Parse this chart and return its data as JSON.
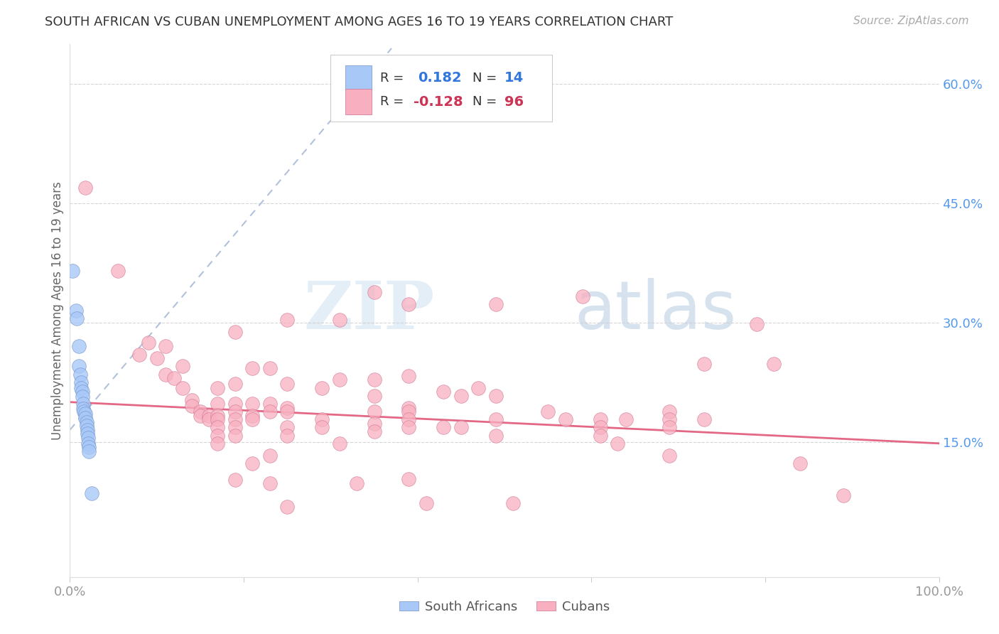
{
  "title": "SOUTH AFRICAN VS CUBAN UNEMPLOYMENT AMONG AGES 16 TO 19 YEARS CORRELATION CHART",
  "source": "Source: ZipAtlas.com",
  "ylabel": "Unemployment Among Ages 16 to 19 years",
  "xlim": [
    0,
    1.0
  ],
  "ylim": [
    -0.02,
    0.65
  ],
  "x_ticks": [
    0.0,
    0.2,
    0.4,
    0.6,
    0.8,
    1.0
  ],
  "x_tick_labels": [
    "0.0%",
    "",
    "",
    "",
    "",
    "100.0%"
  ],
  "y_tick_labels_right": [
    "15.0%",
    "30.0%",
    "45.0%",
    "60.0%"
  ],
  "y_tick_vals_right": [
    0.15,
    0.3,
    0.45,
    0.6
  ],
  "sa_color": "#a8c8f8",
  "sa_edge_color": "#7090c8",
  "cuban_color": "#f8b0c0",
  "cuban_edge_color": "#d07090",
  "sa_line_color": "#9ab8e8",
  "cuban_line_color": "#e05878",
  "background_color": "#ffffff",
  "watermark_zip": "ZIP",
  "watermark_atlas": "atlas",
  "south_african_points": [
    [
      0.003,
      0.365
    ],
    [
      0.007,
      0.315
    ],
    [
      0.008,
      0.305
    ],
    [
      0.01,
      0.27
    ],
    [
      0.01,
      0.245
    ],
    [
      0.012,
      0.235
    ],
    [
      0.013,
      0.225
    ],
    [
      0.013,
      0.218
    ],
    [
      0.014,
      0.213
    ],
    [
      0.014,
      0.207
    ],
    [
      0.015,
      0.198
    ],
    [
      0.015,
      0.192
    ],
    [
      0.016,
      0.188
    ],
    [
      0.018,
      0.185
    ],
    [
      0.018,
      0.18
    ],
    [
      0.019,
      0.175
    ],
    [
      0.019,
      0.17
    ],
    [
      0.02,
      0.165
    ],
    [
      0.02,
      0.16
    ],
    [
      0.021,
      0.155
    ],
    [
      0.021,
      0.148
    ],
    [
      0.022,
      0.143
    ],
    [
      0.022,
      0.138
    ],
    [
      0.025,
      0.085
    ]
  ],
  "cuban_points": [
    [
      0.018,
      0.47
    ],
    [
      0.055,
      0.365
    ],
    [
      0.08,
      0.26
    ],
    [
      0.09,
      0.275
    ],
    [
      0.1,
      0.255
    ],
    [
      0.11,
      0.27
    ],
    [
      0.11,
      0.235
    ],
    [
      0.12,
      0.23
    ],
    [
      0.13,
      0.245
    ],
    [
      0.13,
      0.218
    ],
    [
      0.14,
      0.202
    ],
    [
      0.14,
      0.195
    ],
    [
      0.15,
      0.188
    ],
    [
      0.15,
      0.183
    ],
    [
      0.16,
      0.183
    ],
    [
      0.16,
      0.178
    ],
    [
      0.17,
      0.218
    ],
    [
      0.17,
      0.198
    ],
    [
      0.17,
      0.183
    ],
    [
      0.17,
      0.178
    ],
    [
      0.17,
      0.168
    ],
    [
      0.17,
      0.158
    ],
    [
      0.17,
      0.148
    ],
    [
      0.19,
      0.288
    ],
    [
      0.19,
      0.223
    ],
    [
      0.19,
      0.198
    ],
    [
      0.19,
      0.188
    ],
    [
      0.19,
      0.178
    ],
    [
      0.19,
      0.168
    ],
    [
      0.19,
      0.158
    ],
    [
      0.19,
      0.102
    ],
    [
      0.21,
      0.243
    ],
    [
      0.21,
      0.198
    ],
    [
      0.21,
      0.183
    ],
    [
      0.21,
      0.178
    ],
    [
      0.21,
      0.123
    ],
    [
      0.23,
      0.243
    ],
    [
      0.23,
      0.198
    ],
    [
      0.23,
      0.188
    ],
    [
      0.23,
      0.133
    ],
    [
      0.23,
      0.098
    ],
    [
      0.25,
      0.303
    ],
    [
      0.25,
      0.223
    ],
    [
      0.25,
      0.193
    ],
    [
      0.25,
      0.188
    ],
    [
      0.25,
      0.168
    ],
    [
      0.25,
      0.158
    ],
    [
      0.25,
      0.068
    ],
    [
      0.29,
      0.218
    ],
    [
      0.29,
      0.178
    ],
    [
      0.29,
      0.168
    ],
    [
      0.31,
      0.303
    ],
    [
      0.31,
      0.228
    ],
    [
      0.31,
      0.148
    ],
    [
      0.33,
      0.098
    ],
    [
      0.35,
      0.338
    ],
    [
      0.35,
      0.228
    ],
    [
      0.35,
      0.208
    ],
    [
      0.35,
      0.188
    ],
    [
      0.35,
      0.173
    ],
    [
      0.35,
      0.163
    ],
    [
      0.39,
      0.323
    ],
    [
      0.39,
      0.233
    ],
    [
      0.39,
      0.193
    ],
    [
      0.39,
      0.188
    ],
    [
      0.39,
      0.178
    ],
    [
      0.39,
      0.168
    ],
    [
      0.39,
      0.103
    ],
    [
      0.41,
      0.073
    ],
    [
      0.43,
      0.213
    ],
    [
      0.43,
      0.168
    ],
    [
      0.45,
      0.208
    ],
    [
      0.45,
      0.168
    ],
    [
      0.47,
      0.218
    ],
    [
      0.49,
      0.323
    ],
    [
      0.49,
      0.208
    ],
    [
      0.49,
      0.178
    ],
    [
      0.49,
      0.158
    ],
    [
      0.51,
      0.073
    ],
    [
      0.55,
      0.188
    ],
    [
      0.57,
      0.178
    ],
    [
      0.59,
      0.333
    ],
    [
      0.61,
      0.178
    ],
    [
      0.61,
      0.168
    ],
    [
      0.61,
      0.158
    ],
    [
      0.63,
      0.148
    ],
    [
      0.64,
      0.178
    ],
    [
      0.69,
      0.188
    ],
    [
      0.69,
      0.178
    ],
    [
      0.69,
      0.168
    ],
    [
      0.69,
      0.133
    ],
    [
      0.73,
      0.248
    ],
    [
      0.73,
      0.178
    ],
    [
      0.79,
      0.298
    ],
    [
      0.81,
      0.248
    ],
    [
      0.84,
      0.123
    ],
    [
      0.89,
      0.083
    ]
  ],
  "sa_trend_x": [
    0.0,
    0.37
  ],
  "sa_trend_y": [
    0.165,
    0.645
  ],
  "cuban_trend_x": [
    0.0,
    1.0
  ],
  "cuban_trend_y": [
    0.2,
    0.148
  ]
}
